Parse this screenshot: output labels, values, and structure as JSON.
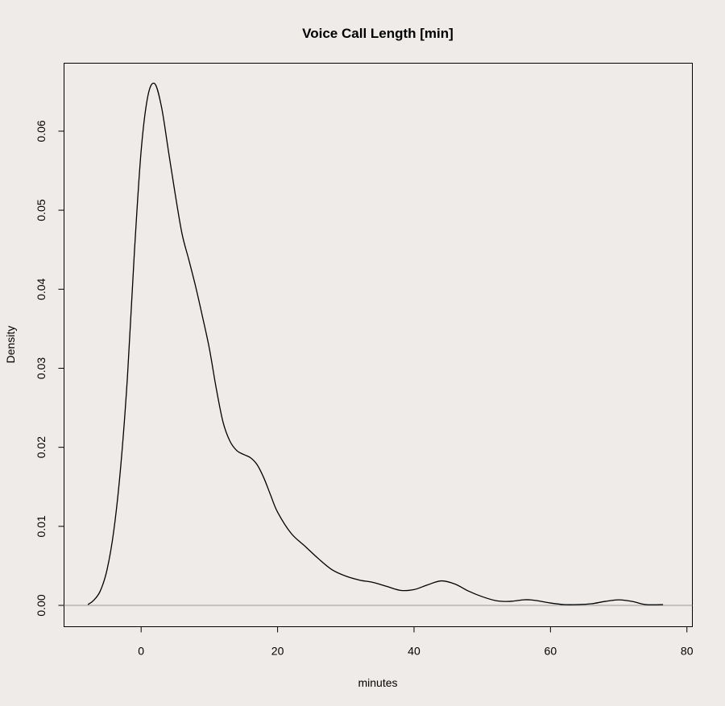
{
  "chart_data": {
    "type": "line",
    "title": "Voice Call Length [min]",
    "xlabel": "minutes",
    "ylabel": "Density",
    "xlim": [
      -11.3,
      80.8
    ],
    "ylim": [
      -0.0027,
      0.0686
    ],
    "x_ticks": [
      0,
      20,
      40,
      60,
      80
    ],
    "x_tick_labels": [
      "0",
      "20",
      "40",
      "60",
      "80"
    ],
    "y_ticks": [
      0.0,
      0.01,
      0.02,
      0.03,
      0.04,
      0.05,
      0.06
    ],
    "y_tick_labels": [
      "0.00",
      "0.01",
      "0.02",
      "0.03",
      "0.04",
      "0.05",
      "0.06"
    ],
    "grid": false,
    "baseline_y": 0,
    "colors": {
      "line": "#000000",
      "baseline": "#999999",
      "background": "#EEEBE9"
    },
    "series": [
      {
        "x": [
          -7.8,
          -7,
          -6,
          -5,
          -4,
          -3,
          -2,
          -1,
          0,
          1,
          2,
          3,
          4,
          5,
          6,
          7,
          8,
          9,
          10,
          11,
          12,
          13,
          14,
          15,
          16,
          17,
          18,
          19,
          20,
          22,
          24,
          26,
          28,
          30,
          32,
          34,
          36,
          38,
          40,
          42,
          44,
          46,
          48,
          50,
          52,
          54,
          56,
          57,
          58,
          60,
          62,
          64,
          66,
          68,
          70,
          72,
          74,
          76.5
        ],
        "y": [
          0.0001,
          0.0006,
          0.0018,
          0.0045,
          0.0095,
          0.0175,
          0.029,
          0.0445,
          0.0575,
          0.0645,
          0.066,
          0.063,
          0.0575,
          0.052,
          0.047,
          0.0437,
          0.0403,
          0.0365,
          0.0325,
          0.0275,
          0.0232,
          0.0208,
          0.0196,
          0.0191,
          0.0187,
          0.0178,
          0.0161,
          0.0139,
          0.0118,
          0.0091,
          0.0075,
          0.0059,
          0.0045,
          0.0037,
          0.0032,
          0.0029,
          0.0024,
          0.0019,
          0.002,
          0.0026,
          0.0031,
          0.0027,
          0.0018,
          0.0011,
          0.0006,
          0.0005,
          0.0007,
          0.0007,
          0.0006,
          0.0003,
          0.0001,
          0.0001,
          0.0002,
          0.0005,
          0.0007,
          0.0005,
          0.0001,
          0.0001
        ]
      }
    ]
  }
}
